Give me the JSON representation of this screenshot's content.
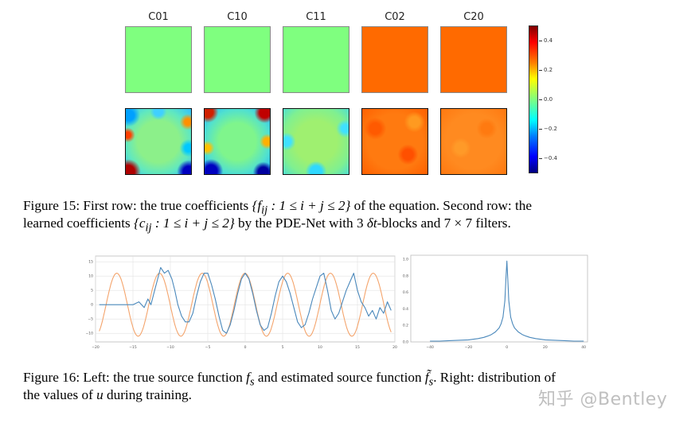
{
  "figure15": {
    "columns": [
      "C01",
      "C10",
      "C11",
      "C02",
      "C20"
    ],
    "true_row_colors": [
      "#7fff7f",
      "#7fff7f",
      "#7fff7f",
      "#ff6a00",
      "#ff6a00"
    ],
    "learned_row_bases": [
      "#8cf08a",
      "#7ff58c",
      "#8ff07a",
      "#ff7a10",
      "#ff8a20"
    ],
    "colorbar": {
      "ticks": [
        "0.4",
        "0.2",
        "0.0",
        "−0.2",
        "−0.4"
      ],
      "min": -0.5,
      "max": 0.5,
      "tick_values": [
        0.4,
        0.2,
        0.0,
        -0.2,
        -0.4
      ]
    },
    "caption": {
      "line1_a": "Figure 15: First row: the true coefficients ",
      "line1_math": "{f",
      "line1_sub": "ij",
      "line1_math2": " : 1 ≤ i + j ≤ 2}",
      "line1_b": " of the equation. Second row: the",
      "line2_a": "learned coefficients ",
      "line2_math": "{c",
      "line2_sub": "ij",
      "line2_math2": " : 1 ≤ i + j ≤ 2}",
      "line2_b": " by the PDE-Net with 3 ",
      "line2_math3": "δt",
      "line2_c": "-blocks and 7 × 7 filters."
    }
  },
  "figure16": {
    "caption": {
      "line1_a": "Figure 16: Left: the true source function ",
      "line1_m1": "f",
      "line1_s1": "s",
      "line1_b": " and estimated source function ",
      "line1_m2": "f̃",
      "line1_s2": "s",
      "line1_c": ". Right: distribution of",
      "line2_a": "the values of ",
      "line2_m": "u",
      "line2_b": " during training."
    }
  },
  "chart_data": [
    {
      "type": "line",
      "title": "",
      "xlabel": "",
      "ylabel": "",
      "xlim": [
        -20,
        20
      ],
      "ylim": [
        -13,
        17
      ],
      "x_ticks": [
        "−20",
        "−15",
        "−10",
        "−5",
        "0",
        "5",
        "10",
        "15",
        "20"
      ],
      "x_tick_values": [
        -20,
        -15,
        -10,
        -5,
        0,
        5,
        10,
        15,
        20
      ],
      "y_ticks": [
        "15",
        "10",
        "5",
        "0",
        "−5",
        "−10"
      ],
      "y_tick_values": [
        15,
        10,
        5,
        0,
        -5,
        -10
      ],
      "grid": true,
      "series": [
        {
          "name": "true source f_s",
          "color": "#f4a46c",
          "function": "11*sin(1.1*x + 1.6)",
          "x_range": [
            -19.5,
            19.5
          ]
        },
        {
          "name": "estimated source f̃_s",
          "color": "#4a88bb",
          "x": [
            -19.5,
            -17,
            -15,
            -14.2,
            -13.5,
            -13,
            -12.6,
            -12.2,
            -11.8,
            -11.3,
            -10.8,
            -10.3,
            -9.8,
            -9.4,
            -9,
            -8.5,
            -8,
            -7.5,
            -7,
            -6.5,
            -6,
            -5.5,
            -5,
            -4.5,
            -4,
            -3.5,
            -3,
            -2.5,
            -2,
            -1.5,
            -1,
            -0.5,
            0,
            0.5,
            1,
            1.5,
            2,
            2.5,
            3,
            3.5,
            4,
            4.5,
            5,
            5.5,
            6,
            6.5,
            7,
            7.5,
            8,
            8.5,
            9,
            9.5,
            10,
            10.5,
            11,
            11.5,
            12,
            12.5,
            13,
            13.5,
            14,
            14.5,
            15,
            15.5,
            16,
            16.5,
            17,
            17.5,
            18,
            18.5,
            19,
            19.5
          ],
          "y": [
            0,
            0,
            0,
            1,
            -1,
            2,
            0,
            4,
            8,
            13,
            11,
            12,
            9,
            5,
            0,
            -4,
            -6,
            -6,
            -3,
            3,
            8,
            11,
            11,
            7,
            2,
            -4,
            -9,
            -10,
            -7,
            -2,
            4,
            9,
            11,
            9,
            4,
            -2,
            -7,
            -9,
            -8,
            -3,
            3,
            8,
            10,
            8,
            4,
            -1,
            -6,
            -8,
            -7,
            -3,
            2,
            6,
            10,
            11,
            5,
            -2,
            -5,
            -3,
            1,
            5,
            8,
            11,
            5,
            1,
            -1,
            -4,
            -2,
            -5,
            -1,
            -3,
            1,
            -2
          ]
        }
      ]
    },
    {
      "type": "line",
      "title": "",
      "xlabel": "",
      "ylabel": "",
      "xlim": [
        -50,
        42
      ],
      "ylim": [
        0,
        1.05
      ],
      "x_ticks": [
        "−40",
        "−20",
        "0",
        "20",
        "40"
      ],
      "x_tick_values": [
        -40,
        -20,
        0,
        20,
        40
      ],
      "y_ticks": [
        "1.0",
        "0.8",
        "0.6",
        "0.4",
        "0.2",
        "0.0"
      ],
      "y_tick_values": [
        1.0,
        0.8,
        0.6,
        0.4,
        0.2,
        0.0
      ],
      "grid": false,
      "series": [
        {
          "name": "distribution of u",
          "color": "#4a88bb",
          "x": [
            -40,
            -35,
            -30,
            -25,
            -20,
            -15,
            -12,
            -10,
            -8,
            -6,
            -4,
            -3,
            -2,
            -1,
            -0.5,
            0,
            0.5,
            1,
            2,
            3,
            4,
            6,
            8,
            10,
            12,
            15,
            20,
            25,
            30,
            35,
            40
          ],
          "y": [
            0.01,
            0.01,
            0.015,
            0.02,
            0.025,
            0.04,
            0.055,
            0.07,
            0.09,
            0.12,
            0.17,
            0.22,
            0.3,
            0.5,
            0.75,
            0.98,
            0.75,
            0.5,
            0.3,
            0.22,
            0.17,
            0.12,
            0.09,
            0.07,
            0.055,
            0.04,
            0.025,
            0.02,
            0.015,
            0.01,
            0.01
          ]
        }
      ]
    }
  ],
  "watermark": "知乎 @Bentley"
}
